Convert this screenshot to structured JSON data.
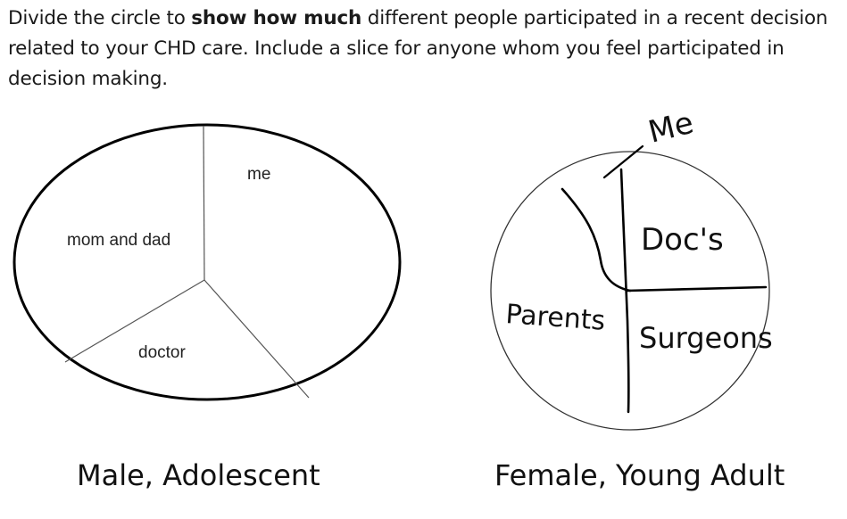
{
  "prompt": {
    "part1": "Divide the circle to ",
    "emphasis": "show how much",
    "part2": " different people participated in a recent decision related to your CHD care. Include a slice for anyone whom you feel participated in decision making."
  },
  "drawings": [
    {
      "caption": "Male, Adolescent",
      "slice_labels": [
        "me",
        "mom and dad",
        "doctor"
      ]
    },
    {
      "caption": "Female, Young Adult",
      "slice_labels": [
        "Me",
        "Doc's",
        "Parents",
        "Surgeons"
      ]
    }
  ]
}
